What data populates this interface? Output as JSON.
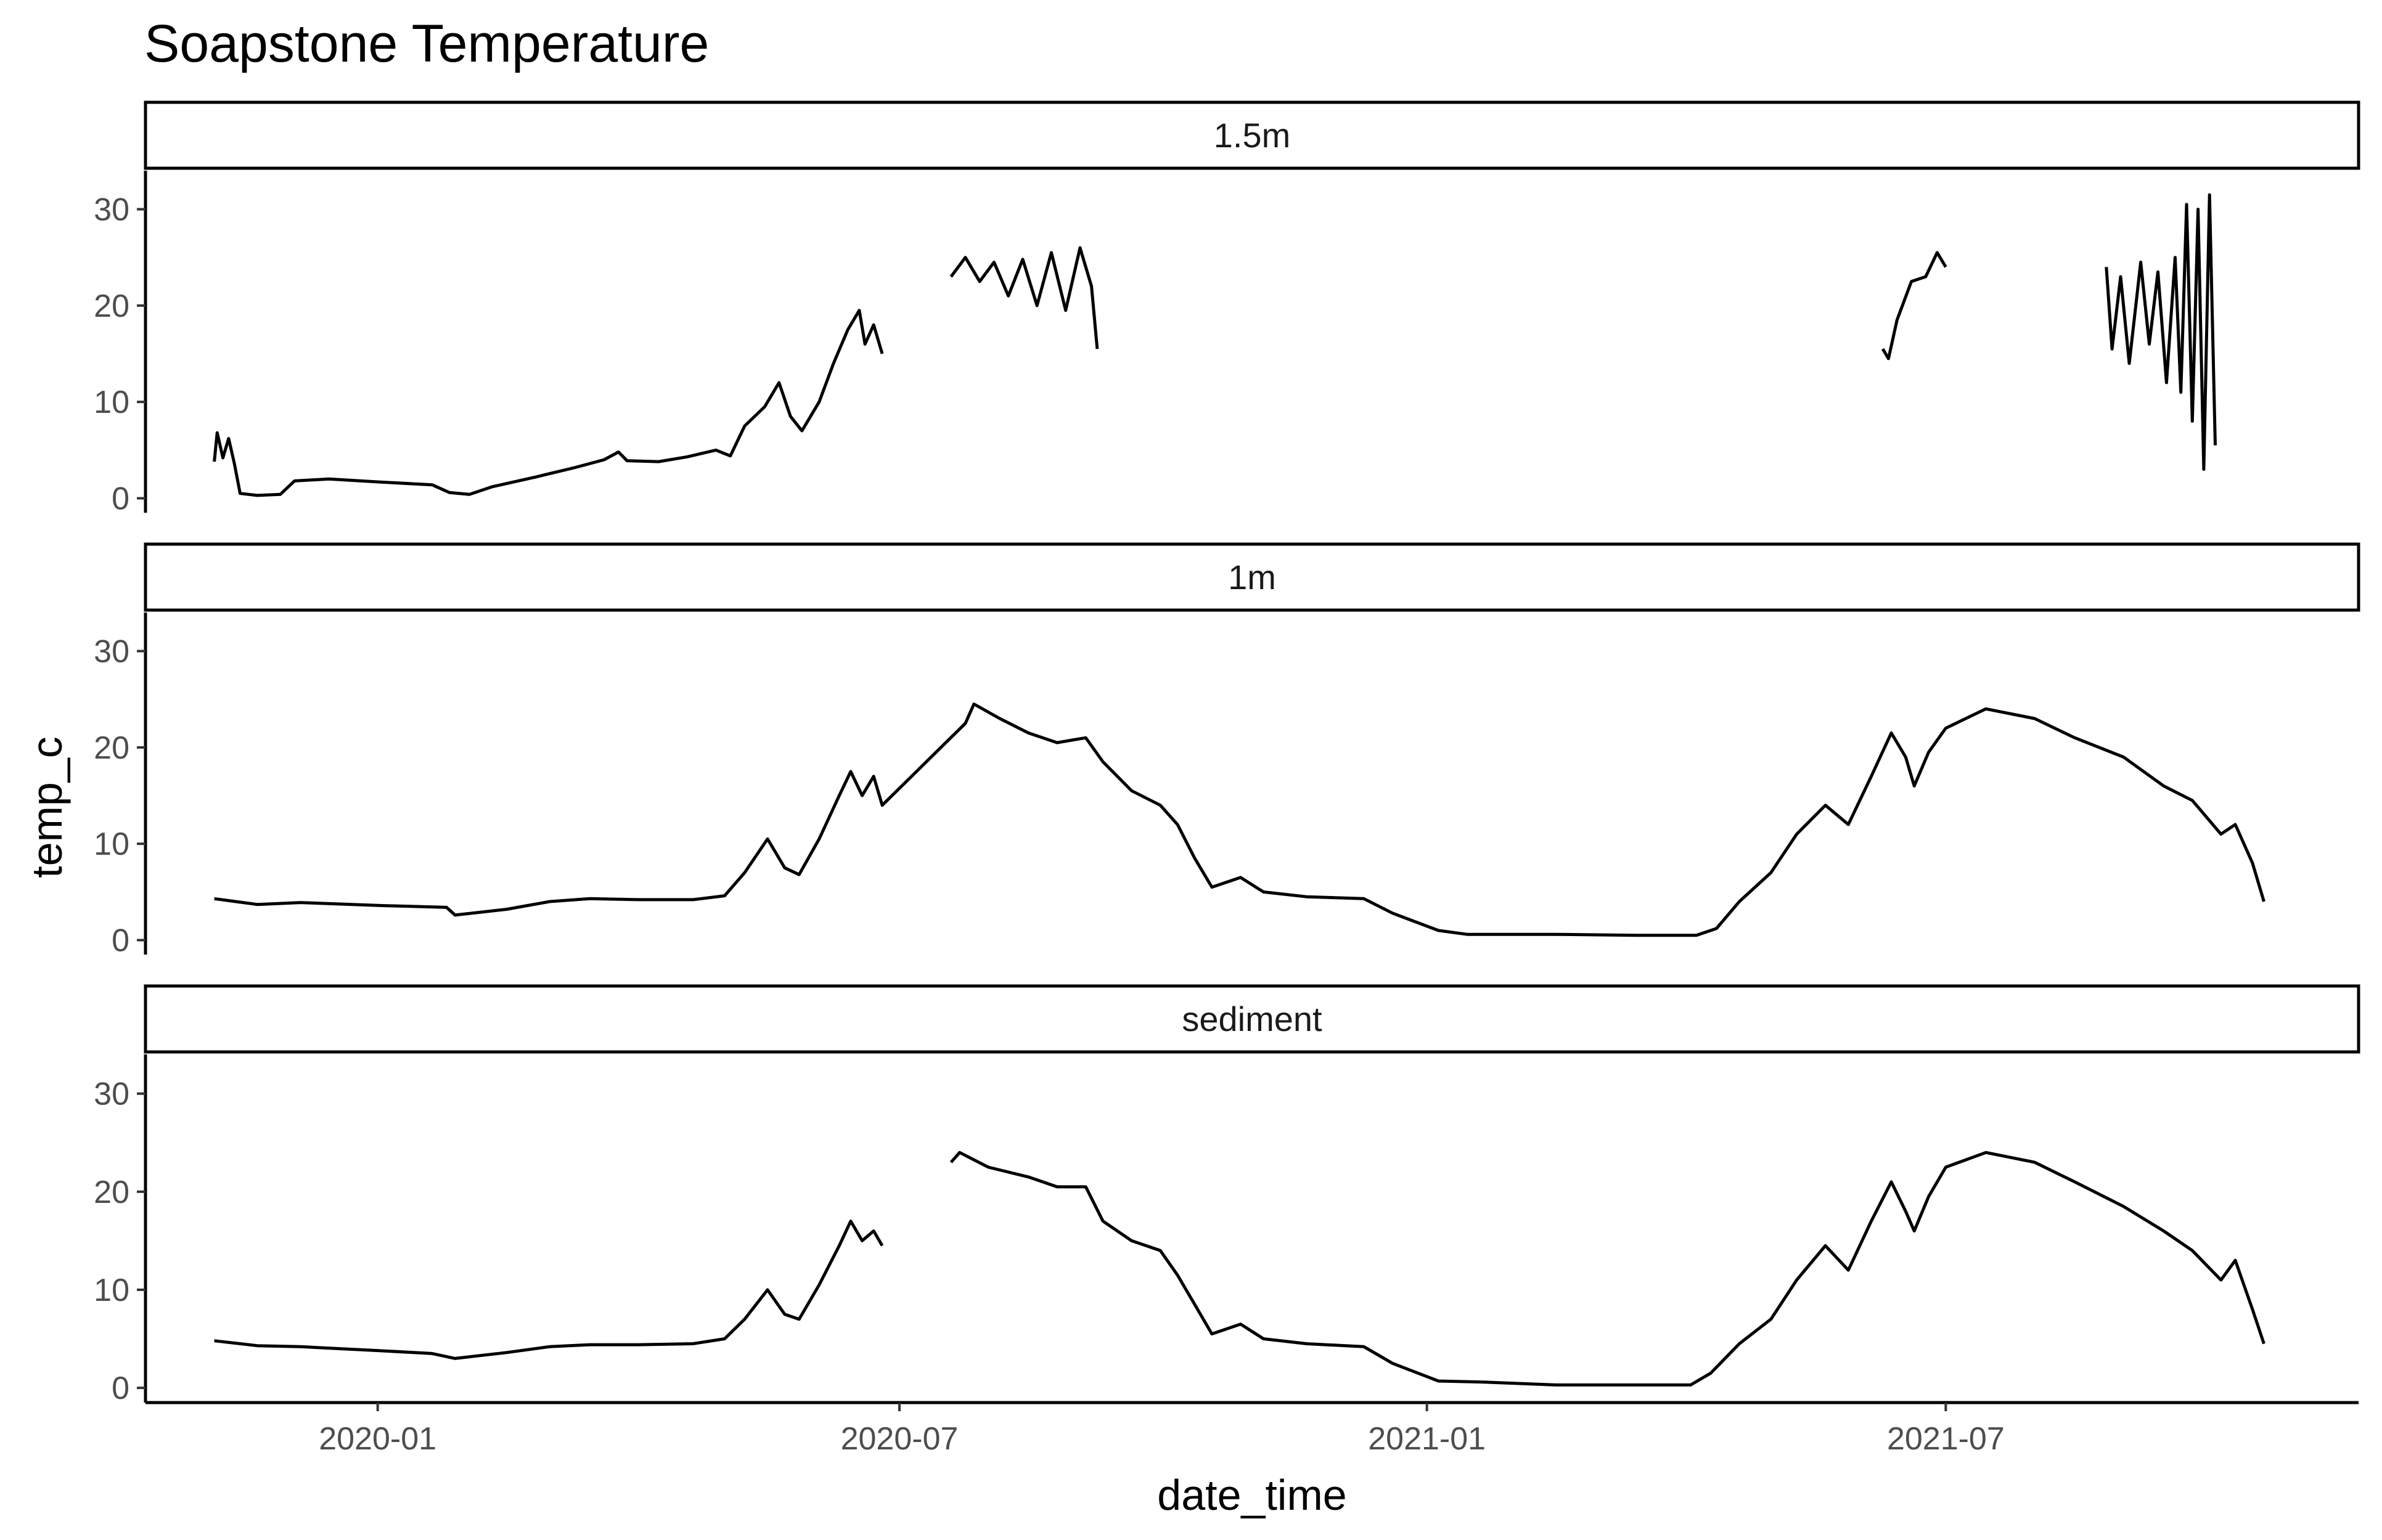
{
  "chart_data": {
    "type": "line",
    "title": "Soapstone Temperature",
    "xlabel": "date_time",
    "ylabel": "temp_c",
    "facet_layout": "vertical",
    "shared_y_axis": true,
    "ylim": [
      -1.5,
      34
    ],
    "yticks": [
      0,
      10,
      20,
      30
    ],
    "xlim": [
      "2019-10-12",
      "2021-11-22"
    ],
    "xticks": [
      {
        "date": "2020-01-01",
        "label": "2020-01"
      },
      {
        "date": "2020-07-01",
        "label": "2020-07"
      },
      {
        "date": "2021-01-01",
        "label": "2021-01"
      },
      {
        "date": "2021-07-01",
        "label": "2021-07"
      }
    ],
    "grid": false,
    "line_color": "#000000",
    "facets": [
      {
        "label": "1.5m",
        "segments": [
          [
            [
              "2019-11-05",
              3.8
            ],
            [
              "2019-11-06",
              6.8
            ],
            [
              "2019-11-08",
              4.2
            ],
            [
              "2019-11-10",
              6.2
            ],
            [
              "2019-11-12",
              3.6
            ],
            [
              "2019-11-14",
              0.5
            ],
            [
              "2019-11-20",
              0.3
            ],
            [
              "2019-11-28",
              0.4
            ],
            [
              "2019-12-03",
              1.8
            ],
            [
              "2019-12-15",
              2.0
            ],
            [
              "2020-01-01",
              1.7
            ],
            [
              "2020-01-20",
              1.4
            ],
            [
              "2020-01-26",
              0.6
            ],
            [
              "2020-02-02",
              0.4
            ],
            [
              "2020-02-10",
              1.2
            ],
            [
              "2020-02-25",
              2.2
            ],
            [
              "2020-03-10",
              3.2
            ],
            [
              "2020-03-20",
              4.0
            ],
            [
              "2020-03-25",
              4.8
            ],
            [
              "2020-03-28",
              3.9
            ],
            [
              "2020-04-08",
              3.8
            ],
            [
              "2020-04-18",
              4.3
            ],
            [
              "2020-04-28",
              5.0
            ],
            [
              "2020-05-03",
              4.4
            ],
            [
              "2020-05-08",
              7.5
            ],
            [
              "2020-05-15",
              9.5
            ],
            [
              "2020-05-20",
              12.0
            ],
            [
              "2020-05-24",
              8.5
            ],
            [
              "2020-05-28",
              7.0
            ],
            [
              "2020-06-03",
              10.0
            ],
            [
              "2020-06-08",
              14.0
            ],
            [
              "2020-06-13",
              17.5
            ],
            [
              "2020-06-17",
              19.5
            ],
            [
              "2020-06-19",
              16.0
            ],
            [
              "2020-06-22",
              18.0
            ],
            [
              "2020-06-25",
              15.0
            ]
          ],
          [
            [
              "2020-07-19",
              23.0
            ],
            [
              "2020-07-24",
              25.0
            ],
            [
              "2020-07-29",
              22.5
            ],
            [
              "2020-08-03",
              24.5
            ],
            [
              "2020-08-08",
              21.0
            ],
            [
              "2020-08-13",
              24.8
            ],
            [
              "2020-08-18",
              20.0
            ],
            [
              "2020-08-23",
              25.5
            ],
            [
              "2020-08-28",
              19.5
            ],
            [
              "2020-09-02",
              26.0
            ],
            [
              "2020-09-06",
              22.0
            ],
            [
              "2020-09-08",
              15.5
            ]
          ],
          [
            [
              "2021-06-09",
              15.5
            ],
            [
              "2021-06-11",
              14.5
            ],
            [
              "2021-06-14",
              18.5
            ],
            [
              "2021-06-19",
              22.5
            ],
            [
              "2021-06-24",
              23.0
            ],
            [
              "2021-06-28",
              25.5
            ],
            [
              "2021-07-01",
              24.0
            ]
          ],
          [
            [
              "2021-08-26",
              24.0
            ],
            [
              "2021-08-28",
              15.5
            ],
            [
              "2021-08-31",
              23.0
            ],
            [
              "2021-09-03",
              14.0
            ],
            [
              "2021-09-07",
              24.5
            ],
            [
              "2021-09-10",
              16.0
            ],
            [
              "2021-09-13",
              23.5
            ],
            [
              "2021-09-16",
              12.0
            ],
            [
              "2021-09-19",
              25.0
            ],
            [
              "2021-09-21",
              11.0
            ],
            [
              "2021-09-23",
              30.5
            ],
            [
              "2021-09-25",
              8.0
            ],
            [
              "2021-09-27",
              30.0
            ],
            [
              "2021-09-29",
              3.0
            ],
            [
              "2021-10-01",
              31.5
            ],
            [
              "2021-10-03",
              5.5
            ]
          ]
        ]
      },
      {
        "label": "1m",
        "segments": [
          [
            [
              "2019-11-05",
              4.3
            ],
            [
              "2019-11-20",
              3.7
            ],
            [
              "2019-12-05",
              3.9
            ],
            [
              "2020-01-01",
              3.6
            ],
            [
              "2020-01-25",
              3.4
            ],
            [
              "2020-01-28",
              2.6
            ],
            [
              "2020-02-15",
              3.2
            ],
            [
              "2020-03-01",
              4.0
            ],
            [
              "2020-03-15",
              4.3
            ],
            [
              "2020-04-01",
              4.2
            ],
            [
              "2020-04-20",
              4.2
            ],
            [
              "2020-05-01",
              4.6
            ],
            [
              "2020-05-08",
              7.0
            ],
            [
              "2020-05-16",
              10.5
            ],
            [
              "2020-05-22",
              7.5
            ],
            [
              "2020-05-27",
              6.8
            ],
            [
              "2020-06-03",
              10.5
            ],
            [
              "2020-06-10",
              15.0
            ],
            [
              "2020-06-14",
              17.5
            ],
            [
              "2020-06-18",
              15.0
            ],
            [
              "2020-06-22",
              17.0
            ],
            [
              "2020-06-25",
              14.0
            ],
            [
              "2020-07-24",
              22.5
            ],
            [
              "2020-07-27",
              24.5
            ],
            [
              "2020-08-05",
              23.0
            ],
            [
              "2020-08-15",
              21.5
            ],
            [
              "2020-08-25",
              20.5
            ],
            [
              "2020-09-04",
              21.0
            ],
            [
              "2020-09-10",
              18.5
            ],
            [
              "2020-09-20",
              15.5
            ],
            [
              "2020-09-30",
              14.0
            ],
            [
              "2020-10-06",
              12.0
            ],
            [
              "2020-10-12",
              8.5
            ],
            [
              "2020-10-18",
              5.5
            ],
            [
              "2020-10-28",
              6.5
            ],
            [
              "2020-11-05",
              5.0
            ],
            [
              "2020-11-20",
              4.5
            ],
            [
              "2020-12-10",
              4.3
            ],
            [
              "2020-12-20",
              2.8
            ],
            [
              "2021-01-05",
              1.0
            ],
            [
              "2021-01-15",
              0.6
            ],
            [
              "2021-02-15",
              0.6
            ],
            [
              "2021-03-15",
              0.5
            ],
            [
              "2021-04-05",
              0.5
            ],
            [
              "2021-04-12",
              1.2
            ],
            [
              "2021-04-20",
              4.0
            ],
            [
              "2021-05-01",
              7.0
            ],
            [
              "2021-05-10",
              11.0
            ],
            [
              "2021-05-20",
              14.0
            ],
            [
              "2021-05-28",
              12.0
            ],
            [
              "2021-06-05",
              17.0
            ],
            [
              "2021-06-12",
              21.5
            ],
            [
              "2021-06-17",
              19.0
            ],
            [
              "2021-06-20",
              16.0
            ],
            [
              "2021-06-25",
              19.5
            ],
            [
              "2021-07-01",
              22.0
            ],
            [
              "2021-07-15",
              24.0
            ],
            [
              "2021-08-01",
              23.0
            ],
            [
              "2021-08-15",
              21.0
            ],
            [
              "2021-09-01",
              19.0
            ],
            [
              "2021-09-15",
              16.0
            ],
            [
              "2021-09-25",
              14.5
            ],
            [
              "2021-10-05",
              11.0
            ],
            [
              "2021-10-10",
              12.0
            ],
            [
              "2021-10-16",
              8.0
            ],
            [
              "2021-10-20",
              4.0
            ]
          ]
        ]
      },
      {
        "label": "sediment",
        "segments": [
          [
            [
              "2019-11-05",
              4.8
            ],
            [
              "2019-11-20",
              4.3
            ],
            [
              "2019-12-05",
              4.2
            ],
            [
              "2020-01-01",
              3.8
            ],
            [
              "2020-01-20",
              3.5
            ],
            [
              "2020-01-28",
              3.0
            ],
            [
              "2020-02-15",
              3.6
            ],
            [
              "2020-03-01",
              4.2
            ],
            [
              "2020-03-15",
              4.4
            ],
            [
              "2020-04-01",
              4.4
            ],
            [
              "2020-04-20",
              4.5
            ],
            [
              "2020-05-01",
              5.0
            ],
            [
              "2020-05-08",
              7.0
            ],
            [
              "2020-05-16",
              10.0
            ],
            [
              "2020-05-22",
              7.5
            ],
            [
              "2020-05-27",
              7.0
            ],
            [
              "2020-06-03",
              10.5
            ],
            [
              "2020-06-10",
              14.5
            ],
            [
              "2020-06-14",
              17.0
            ],
            [
              "2020-06-18",
              15.0
            ],
            [
              "2020-06-22",
              16.0
            ],
            [
              "2020-06-25",
              14.5
            ]
          ],
          [
            [
              "2020-07-19",
              23.0
            ],
            [
              "2020-07-22",
              24.0
            ],
            [
              "2020-08-01",
              22.5
            ],
            [
              "2020-08-15",
              21.5
            ],
            [
              "2020-08-25",
              20.5
            ],
            [
              "2020-09-04",
              20.5
            ],
            [
              "2020-09-10",
              17.0
            ],
            [
              "2020-09-20",
              15.0
            ],
            [
              "2020-09-30",
              14.0
            ],
            [
              "2020-10-06",
              11.5
            ],
            [
              "2020-10-12",
              8.5
            ],
            [
              "2020-10-18",
              5.5
            ],
            [
              "2020-10-28",
              6.5
            ],
            [
              "2020-11-05",
              5.0
            ],
            [
              "2020-11-20",
              4.5
            ],
            [
              "2020-12-10",
              4.2
            ],
            [
              "2020-12-20",
              2.5
            ],
            [
              "2021-01-05",
              0.7
            ],
            [
              "2021-01-20",
              0.6
            ],
            [
              "2021-02-15",
              0.3
            ],
            [
              "2021-03-15",
              0.3
            ],
            [
              "2021-04-03",
              0.3
            ],
            [
              "2021-04-10",
              1.5
            ],
            [
              "2021-04-20",
              4.5
            ],
            [
              "2021-05-01",
              7.0
            ],
            [
              "2021-05-10",
              11.0
            ],
            [
              "2021-05-20",
              14.5
            ],
            [
              "2021-05-28",
              12.0
            ],
            [
              "2021-06-05",
              17.0
            ],
            [
              "2021-06-12",
              21.0
            ],
            [
              "2021-06-17",
              18.0
            ],
            [
              "2021-06-20",
              16.0
            ],
            [
              "2021-06-25",
              19.5
            ],
            [
              "2021-07-01",
              22.5
            ],
            [
              "2021-07-15",
              24.0
            ],
            [
              "2021-08-01",
              23.0
            ],
            [
              "2021-08-15",
              21.0
            ],
            [
              "2021-09-01",
              18.5
            ],
            [
              "2021-09-15",
              16.0
            ],
            [
              "2021-09-25",
              14.0
            ],
            [
              "2021-10-05",
              11.0
            ],
            [
              "2021-10-10",
              13.0
            ],
            [
              "2021-10-16",
              8.0
            ],
            [
              "2021-10-20",
              4.5
            ]
          ]
        ]
      }
    ]
  }
}
